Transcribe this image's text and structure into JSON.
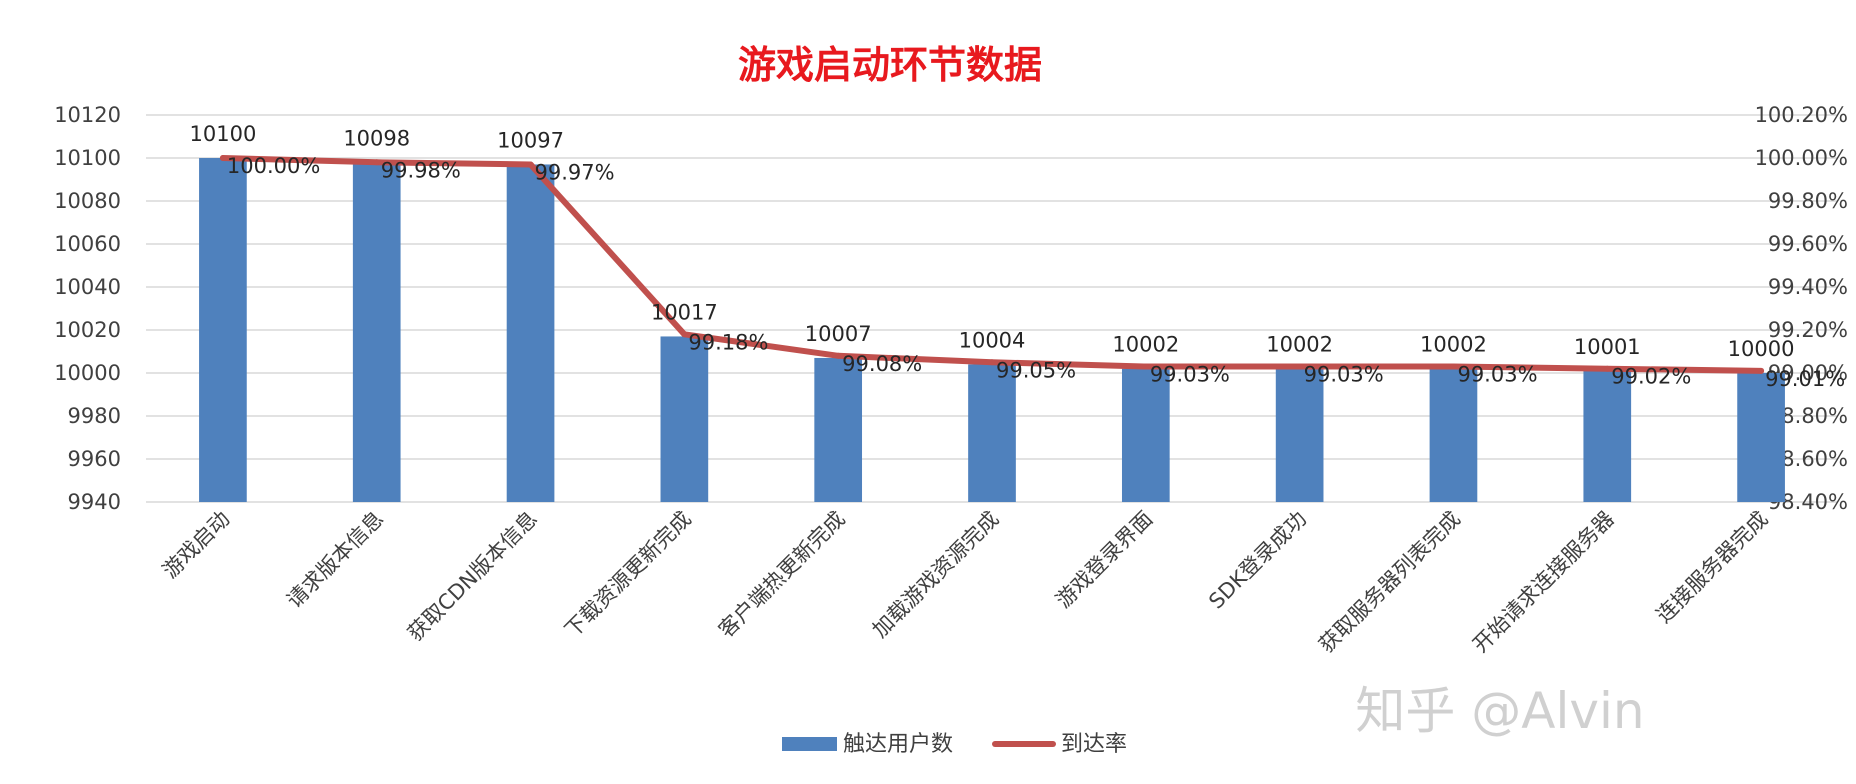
{
  "watermark": "知乎 @Alvin",
  "chart_data": {
    "type": "bar+line",
    "title": "游戏启动环节数据",
    "categories": [
      "游戏启动",
      "请求版本信息",
      "获取CDN版本信息",
      "下载资源更新完成",
      "客户端热更新完成",
      "加载游戏资源完成",
      "游戏登录界面",
      "SDK登录成功",
      "获取服务器列表完成",
      "开始请求连接服务器",
      "连接服务器完成"
    ],
    "series": [
      {
        "name": "触达用户数",
        "type": "bar",
        "axis": "left",
        "color": "#4f81bd",
        "values": [
          10100,
          10098,
          10097,
          10017,
          10007,
          10004,
          10002,
          10002,
          10002,
          10001,
          10000
        ],
        "labels": [
          "10100",
          "10098",
          "10097",
          "10017",
          "10007",
          "10004",
          "10002",
          "10002",
          "10002",
          "10001",
          "10000"
        ]
      },
      {
        "name": "到达率",
        "type": "line",
        "axis": "right",
        "color": "#c0504d",
        "values": [
          100.0,
          99.98,
          99.97,
          99.18,
          99.08,
          99.05,
          99.03,
          99.03,
          99.03,
          99.02,
          99.01
        ],
        "labels": [
          "100.00%",
          "99.98%",
          "99.97%",
          "99.18%",
          "99.08%",
          "99.05%",
          "99.03%",
          "99.03%",
          "99.03%",
          "99.02%",
          "99.01%"
        ]
      }
    ],
    "ylim_left": [
      9940,
      10120
    ],
    "yticks_left": [
      "10120",
      "10100",
      "10080",
      "10060",
      "10040",
      "10020",
      "10000",
      "9980",
      "9960",
      "9940"
    ],
    "ylim_right": [
      98.4,
      100.2
    ],
    "yticks_right": [
      "100.20%",
      "100.00%",
      "99.80%",
      "99.60%",
      "99.40%",
      "99.20%",
      "99.00%",
      "98.80%",
      "98.60%",
      "98.40%"
    ],
    "grid": true,
    "legend_position": "bottom",
    "colors": {
      "title": "#e8191e",
      "grid": "#d9d9d9",
      "bar": "#4f81bd",
      "line": "#c0504d"
    }
  }
}
